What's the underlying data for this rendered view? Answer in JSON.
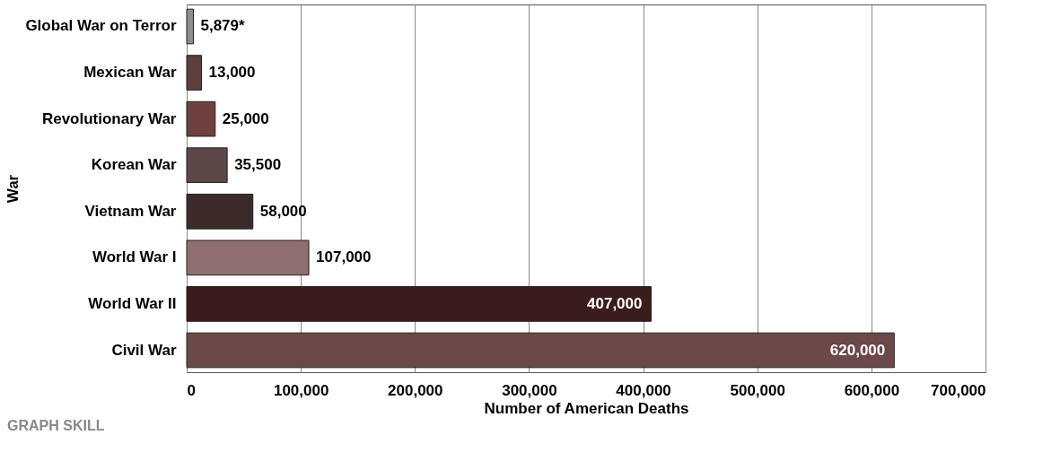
{
  "chart_data": {
    "type": "bar",
    "orientation": "horizontal",
    "categories": [
      "Global War on Terror",
      "Mexican War",
      "Revolutionary War",
      "Korean War",
      "Vietnam War",
      "World War I",
      "World War II",
      "Civil War"
    ],
    "values": [
      5879,
      13000,
      25000,
      35500,
      58000,
      107000,
      407000,
      620000
    ],
    "value_labels": [
      "5,879*",
      "13,000",
      "25,000",
      "35,500",
      "58,000",
      "107,000",
      "407,000",
      "620,000"
    ],
    "colors": [
      "#8c8c8c",
      "#5e3d3d",
      "#6e4040",
      "#5c4848",
      "#3d2b2b",
      "#8e6e6e",
      "#3b1c1c",
      "#6c4848"
    ],
    "xlim": [
      0,
      700000
    ],
    "xticks": [
      0,
      {
        "value": 100000,
        "label": "100,000"
      },
      {
        "value": 200000,
        "label": "200,000"
      },
      {
        "value": 300000,
        "label": "300,000"
      },
      {
        "value": 400000,
        "label": "400,000"
      },
      {
        "value": 500000,
        "label": "500,000"
      },
      {
        "value": 600000,
        "label": "600,000"
      },
      {
        "value": 700000,
        "label": "700,000"
      }
    ],
    "xlabel": "Number of American Deaths",
    "ylabel": "War",
    "grid": "x",
    "annotations": [
      "GRAPH SKILL"
    ]
  }
}
